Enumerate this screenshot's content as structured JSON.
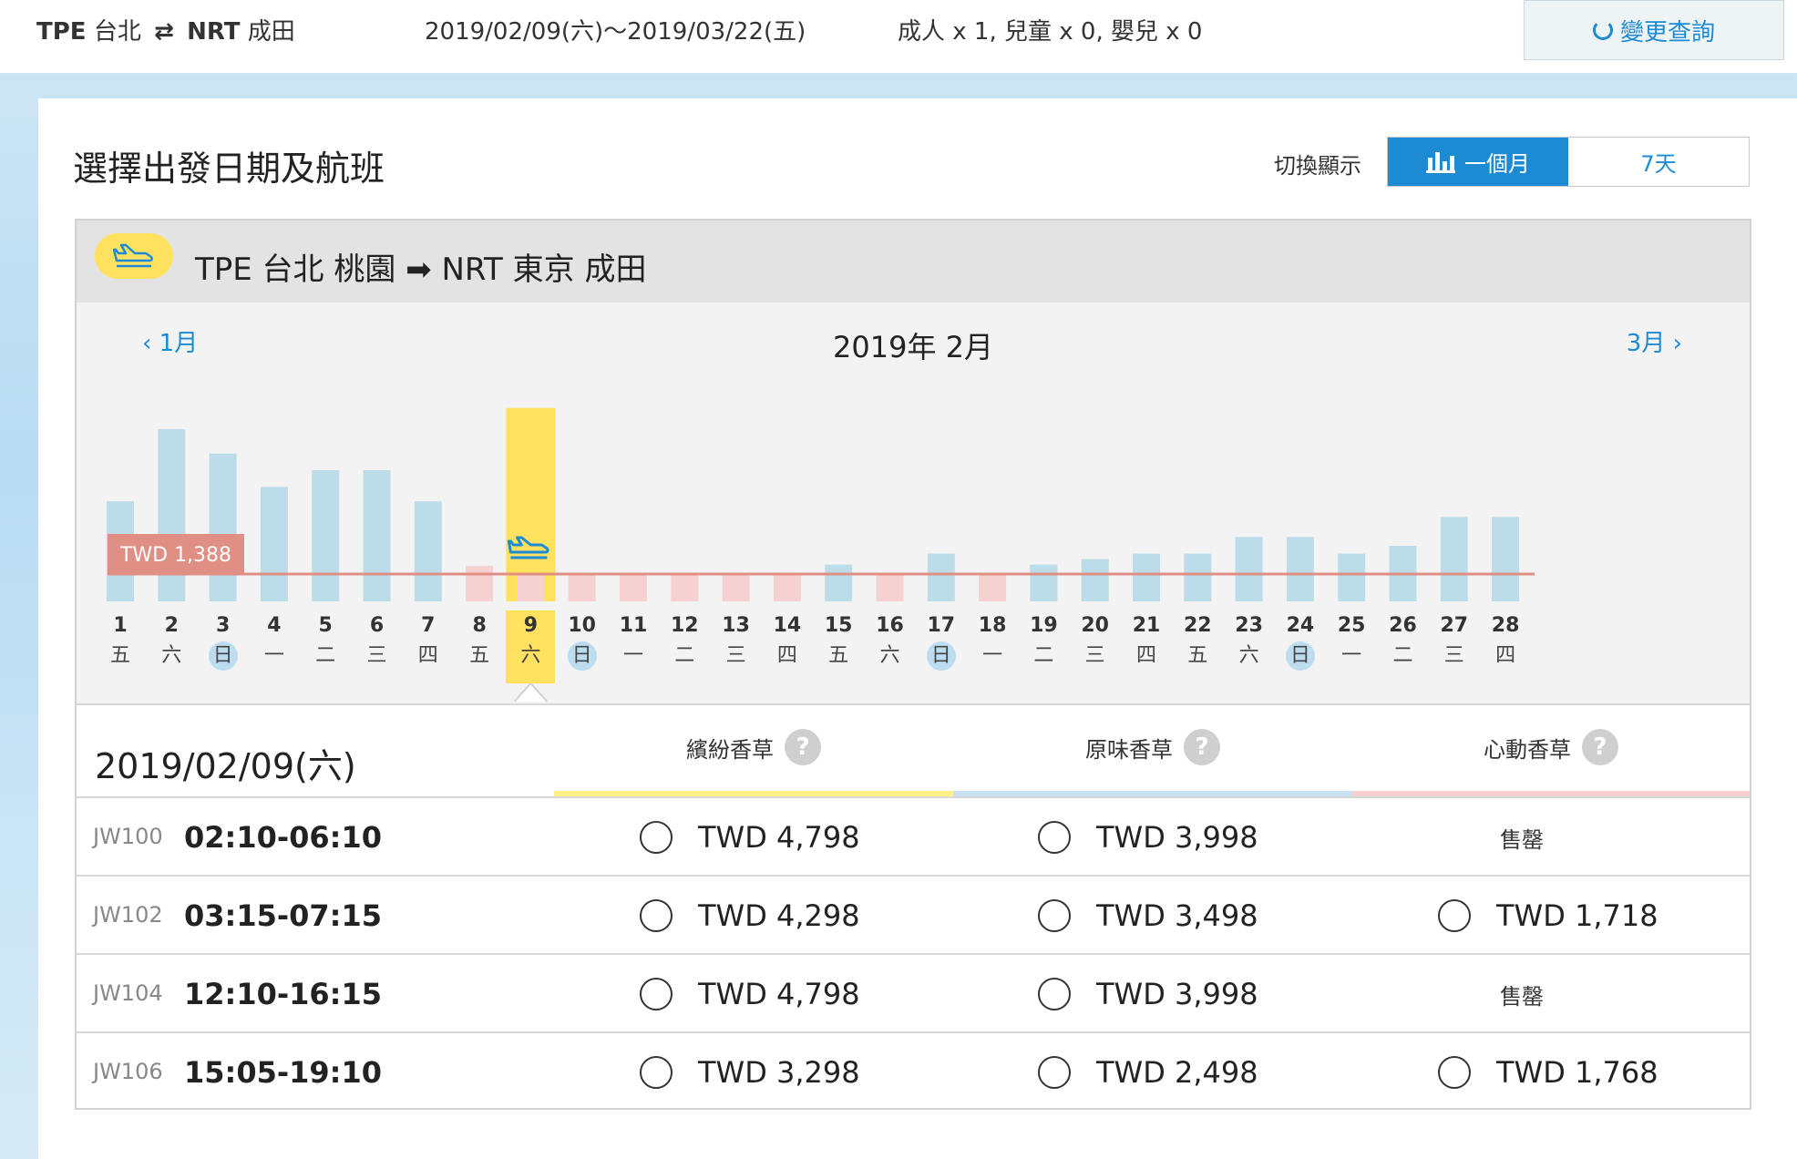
{
  "topbar": {
    "origin_code": "TPE",
    "origin_city": "台北",
    "swap_glyph": "⇄",
    "dest_code": "NRT",
    "dest_city": "成田",
    "date_range": "2019/02/09(六)～2019/03/22(五)",
    "passengers": "成人 x 1,  兒童 x 0,  嬰兒 x 0",
    "change_label": "變更查詢"
  },
  "page": {
    "title": "選擇出發日期及航班",
    "switch_label": "切換顯示",
    "view_month": "一個月",
    "view_week": "7天"
  },
  "route": {
    "title": "TPE  台北 桃園 ➡ NRT  東京 成田"
  },
  "calendar": {
    "prev_month": "1月",
    "next_month": "3月",
    "month_title": "2019年 2月"
  },
  "colors": {
    "accent": "#1d8bd4",
    "yellow": "#ffe160",
    "blue_bar": "#bcdcea",
    "pink_bar": "#f6d1d1",
    "min_line": "#e08f85",
    "fare_yellow": "#fff08a",
    "fare_blue": "#c9e1f0",
    "fare_pink": "#f8cfd0"
  },
  "chart_data": {
    "type": "bar",
    "selected_day": "9",
    "min_price_label": "TWD 1,388",
    "min_price_value": 1388,
    "days": [
      {
        "day": "1",
        "weekday": "五",
        "value": 90,
        "avail": true
      },
      {
        "day": "2",
        "weekday": "六",
        "value": 155,
        "avail": true
      },
      {
        "day": "3",
        "weekday": "日",
        "value": 133,
        "avail": true,
        "sunday": true
      },
      {
        "day": "4",
        "weekday": "一",
        "value": 103,
        "avail": true
      },
      {
        "day": "5",
        "weekday": "二",
        "value": 118,
        "avail": true
      },
      {
        "day": "6",
        "weekday": "三",
        "value": 118,
        "avail": true
      },
      {
        "day": "7",
        "weekday": "四",
        "value": 90,
        "avail": true
      },
      {
        "day": "8",
        "weekday": "五",
        "value": 32,
        "avail": false
      },
      {
        "day": "9",
        "weekday": "六",
        "value": 174,
        "avail": true
      },
      {
        "day": "10",
        "weekday": "日",
        "value": 25,
        "avail": false,
        "sunday": true
      },
      {
        "day": "11",
        "weekday": "一",
        "value": 25,
        "avail": false
      },
      {
        "day": "12",
        "weekday": "二",
        "value": 25,
        "avail": false
      },
      {
        "day": "13",
        "weekday": "三",
        "value": 25,
        "avail": false
      },
      {
        "day": "14",
        "weekday": "四",
        "value": 25,
        "avail": false
      },
      {
        "day": "15",
        "weekday": "五",
        "value": 33,
        "avail": true
      },
      {
        "day": "16",
        "weekday": "六",
        "value": 25,
        "avail": false
      },
      {
        "day": "17",
        "weekday": "日",
        "value": 43,
        "avail": true,
        "sunday": true
      },
      {
        "day": "18",
        "weekday": "一",
        "value": 25,
        "avail": false
      },
      {
        "day": "19",
        "weekday": "二",
        "value": 33,
        "avail": true
      },
      {
        "day": "20",
        "weekday": "三",
        "value": 38,
        "avail": true
      },
      {
        "day": "21",
        "weekday": "四",
        "value": 43,
        "avail": true
      },
      {
        "day": "22",
        "weekday": "五",
        "value": 43,
        "avail": true
      },
      {
        "day": "23",
        "weekday": "六",
        "value": 58,
        "avail": true
      },
      {
        "day": "24",
        "weekday": "日",
        "value": 58,
        "avail": true,
        "sunday": true
      },
      {
        "day": "25",
        "weekday": "一",
        "value": 43,
        "avail": true
      },
      {
        "day": "26",
        "weekday": "二",
        "value": 50,
        "avail": true
      },
      {
        "day": "27",
        "weekday": "三",
        "value": 76,
        "avail": true
      },
      {
        "day": "28",
        "weekday": "四",
        "value": 76,
        "avail": true
      }
    ]
  },
  "fares": {
    "selected_date": "2019/02/09(六)",
    "columns": [
      "繽紛香草",
      "原味香草",
      "心動香草"
    ],
    "help_glyph": "?",
    "sold_out": "售罄",
    "flights": [
      {
        "no": "JW100",
        "time": "02:10-06:10",
        "prices": [
          "TWD 4,798",
          "TWD 3,998",
          ""
        ]
      },
      {
        "no": "JW102",
        "time": "03:15-07:15",
        "prices": [
          "TWD 4,298",
          "TWD 3,498",
          "TWD 1,718"
        ]
      },
      {
        "no": "JW104",
        "time": "12:10-16:15",
        "prices": [
          "TWD 4,798",
          "TWD 3,998",
          ""
        ]
      },
      {
        "no": "JW106",
        "time": "15:05-19:10",
        "prices": [
          "TWD 3,298",
          "TWD 2,498",
          "TWD 1,768"
        ]
      }
    ]
  }
}
